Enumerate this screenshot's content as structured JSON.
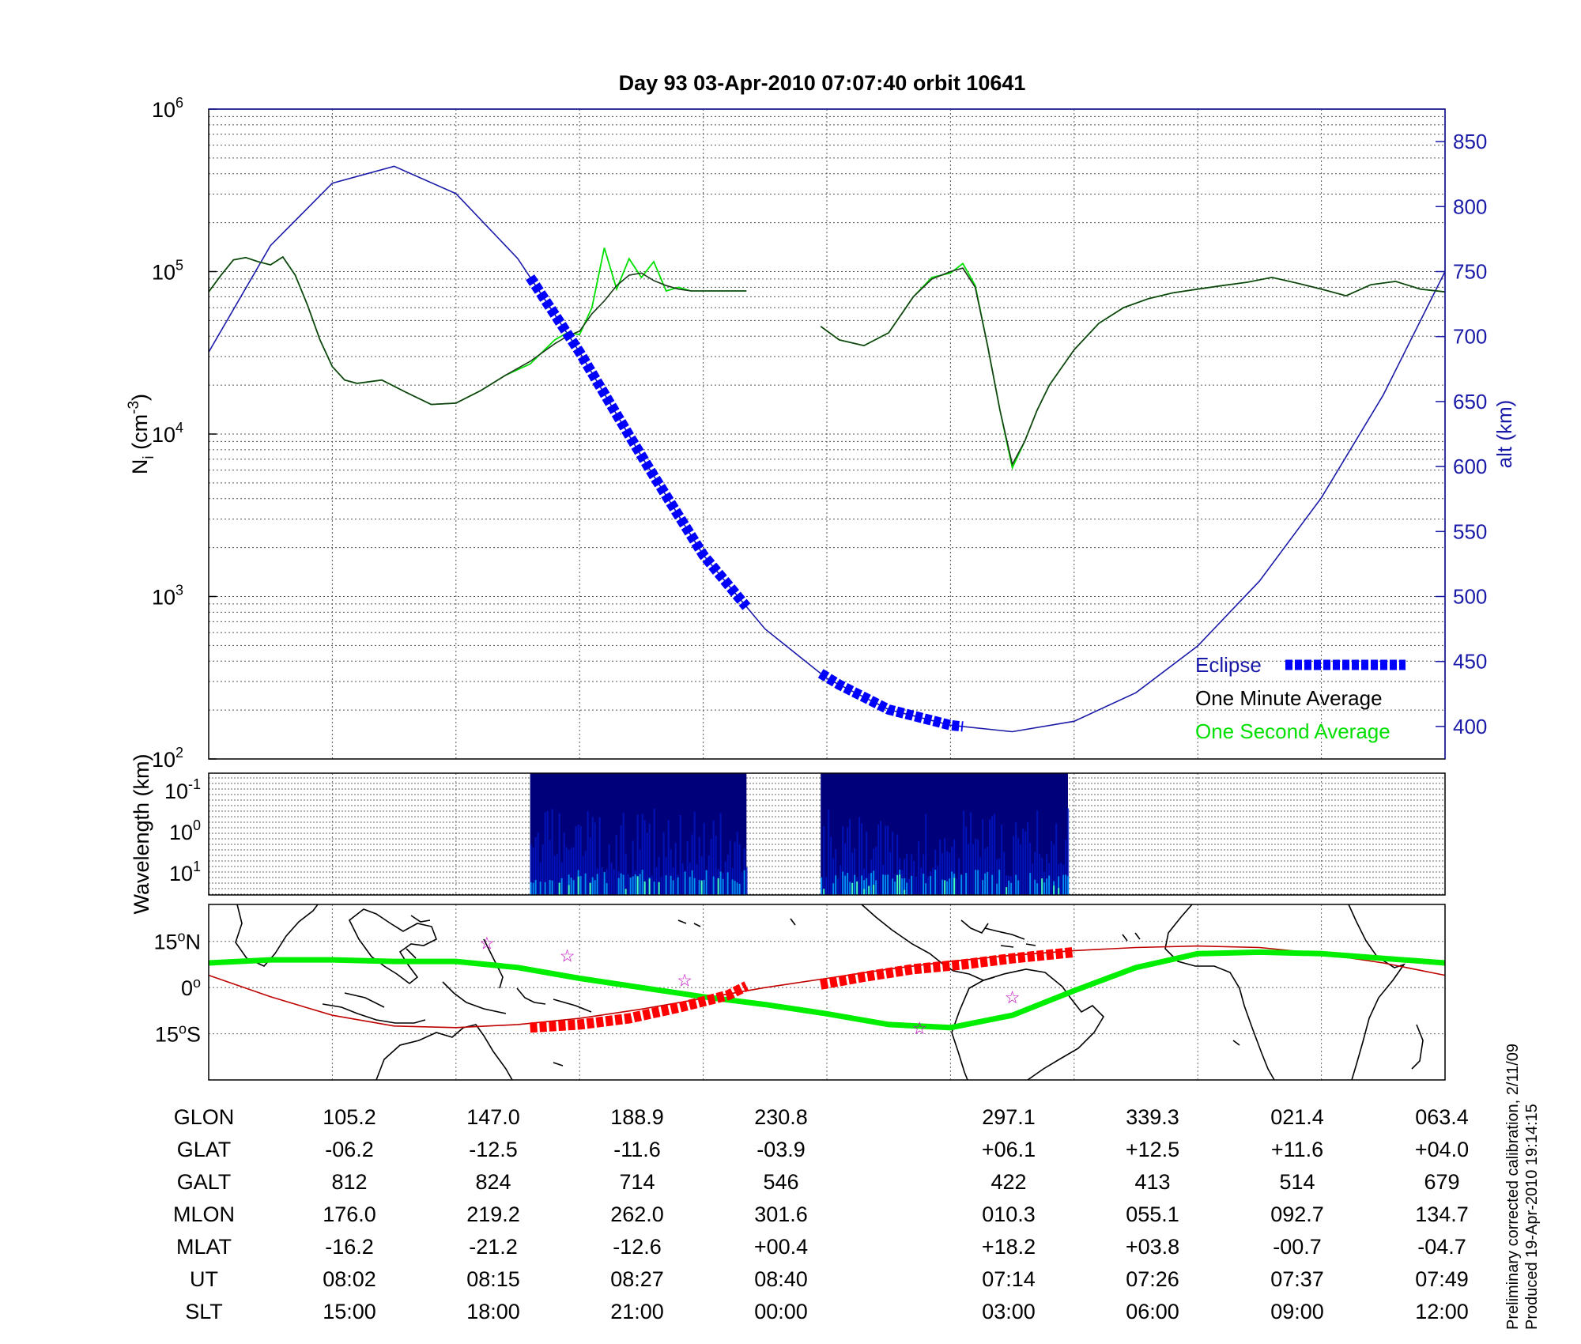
{
  "title": "Day 93  03-Apr-2010 07:07:40   orbit 10641",
  "colors": {
    "alt": "#1a1aa8",
    "eclipse": "#0000ff",
    "minute": "#1a3a1a",
    "second": "#00e000",
    "track": "#00ee00",
    "path": "#c00000",
    "red_marker": "#ff0000",
    "star": "#c000c0"
  },
  "icons": [
    "star-icon"
  ],
  "chart_data": [
    {
      "type": "line",
      "name": "density-altitude",
      "ylabel": "N_i (cm^-3)",
      "ylabel_main": "N",
      "ylabel_sub": "i",
      "ylabel_units": "(cm",
      "ylabel_exp": "-3",
      "ylabel_close": ")",
      "yscale": "log",
      "ylim": [
        100,
        1000000
      ],
      "yticks": [
        {
          "base": "10",
          "exp": "2"
        },
        {
          "base": "10",
          "exp": "3"
        },
        {
          "base": "10",
          "exp": "4"
        },
        {
          "base": "10",
          "exp": "5"
        },
        {
          "base": "10",
          "exp": "6"
        }
      ],
      "y2label": "alt (km)",
      "y2lim": [
        375,
        875
      ],
      "y2ticks": [
        "400",
        "450",
        "500",
        "550",
        "600",
        "650",
        "700",
        "750",
        "800",
        "850"
      ],
      "grid": true,
      "legend": "bottom-right",
      "legend_entries": [
        "Eclipse",
        "One Minute Average",
        "One Second Average"
      ],
      "segments": [
        {
          "x": [
            0,
            0.1,
            0.2,
            0.3,
            0.4,
            0.5,
            0.6,
            0.7,
            0.8,
            0.9,
            1.0,
            1.1,
            1.2,
            1.4,
            1.6,
            1.8,
            2.0,
            2.2,
            2.4,
            2.6,
            2.8,
            2.9,
            3.0,
            3.1,
            3.2,
            3.3,
            3.4,
            3.5,
            3.6,
            3.7,
            3.8,
            3.9,
            4.0,
            4.1,
            4.2,
            4.3,
            4.35
          ],
          "minute": [
            75000,
            95000,
            118000,
            122000,
            115000,
            110000,
            123000,
            95000,
            62000,
            38000,
            26000,
            21500,
            20500,
            21500,
            18000,
            15200,
            15500,
            18500,
            23000,
            28000,
            36000,
            40000,
            43000,
            55000,
            66000,
            82000,
            95000,
            98000,
            88000,
            82000,
            78000,
            76000,
            76000,
            76000,
            76000,
            76000,
            76000
          ],
          "second": [
            75000,
            95000,
            118000,
            122000,
            115000,
            110000,
            123000,
            95000,
            62000,
            38000,
            26000,
            21500,
            20500,
            21500,
            18000,
            15200,
            15500,
            18500,
            23000,
            27000,
            38000,
            42000,
            41000,
            60000,
            140000,
            78000,
            120000,
            92000,
            115000,
            76000,
            80000,
            76000,
            76000,
            76000,
            76000,
            76000,
            76000
          ]
        },
        {
          "x": [
            4.95,
            5.1,
            5.3,
            5.5,
            5.7,
            5.85,
            6.0,
            6.1,
            6.2,
            6.3,
            6.4,
            6.5,
            6.6,
            6.7,
            6.8,
            7.0,
            7.2,
            7.4,
            7.6,
            7.8,
            8.0,
            8.2,
            8.4,
            8.6,
            8.8,
            9.0,
            9.2,
            9.4,
            9.6,
            9.8,
            10.0
          ],
          "minute": [
            46000,
            38000,
            35000,
            42000,
            70000,
            90000,
            100000,
            105000,
            80000,
            35000,
            14000,
            6500,
            9000,
            14000,
            20000,
            33000,
            48000,
            60000,
            68000,
            74000,
            78000,
            82000,
            86000,
            92000,
            85000,
            78000,
            71000,
            83000,
            87000,
            78000,
            75000
          ],
          "second": [
            46000,
            38000,
            35000,
            42000,
            70000,
            92000,
            98000,
            112000,
            82000,
            35000,
            14000,
            6200,
            9000,
            14000,
            20000,
            33000,
            48000,
            60000,
            68000,
            74000,
            78000,
            82000,
            86000,
            92000,
            85000,
            78000,
            71000,
            83000,
            87000,
            78000,
            75000
          ]
        }
      ],
      "altitude": {
        "x": [
          0,
          0.5,
          1.0,
          1.5,
          2.0,
          2.5,
          3.0,
          3.5,
          4.0,
          4.5,
          5.0,
          5.5,
          6.0,
          6.5,
          7.0,
          7.5,
          8.0,
          8.5,
          9.0,
          9.5,
          10.0
        ],
        "km": [
          688,
          770,
          818,
          831,
          810,
          760,
          688,
          608,
          532,
          475,
          437,
          413,
          401,
          396,
          404,
          426,
          462,
          512,
          576,
          655,
          750
        ]
      },
      "eclipse_segments": [
        {
          "x": [
            2.6,
            2.8,
            3.0,
            3.2,
            3.4,
            3.6,
            3.8,
            4.0,
            4.2,
            4.35
          ]
        },
        {
          "x": [
            4.95,
            5.1,
            5.3,
            5.5,
            5.7,
            5.85,
            6.0,
            6.1
          ]
        }
      ]
    },
    {
      "type": "heatmap",
      "name": "wavelength-spectrogram",
      "ylabel": "Wavelength (km)",
      "yscale": "log",
      "yticks": [
        {
          "base": "10",
          "exp": "-1"
        },
        {
          "base": "10",
          "exp": "0"
        },
        {
          "base": "10",
          "exp": "1"
        }
      ],
      "xranges": [
        [
          2.6,
          4.35
        ],
        [
          4.95,
          6.95
        ]
      ],
      "colormap": [
        "#00007a",
        "#0018c8",
        "#0050ff",
        "#00a0ff",
        "#40ffc0",
        "#e0ff40",
        "#ff8000"
      ]
    },
    {
      "type": "scatter",
      "name": "ground-track-map",
      "ylim": [
        -30,
        27
      ],
      "yticks": [
        {
          "value": 15,
          "deg": "15",
          "hemi": "N"
        },
        {
          "value": 0,
          "deg": "0",
          "hemi": ""
        },
        {
          "value": -15,
          "deg": "15",
          "hemi": "S"
        }
      ],
      "green_track": {
        "x": [
          0,
          0.5,
          1.0,
          1.5,
          2.0,
          2.5,
          3.0,
          3.5,
          4.0,
          4.5,
          5.0,
          5.5,
          6.0,
          6.5,
          7.0,
          7.5,
          8.0,
          8.5,
          9.0,
          9.5,
          10.0
        ],
        "lat": [
          8,
          9,
          9,
          8.5,
          8.5,
          6.5,
          3,
          0,
          -3,
          -5.5,
          -8.5,
          -12,
          -13,
          -9,
          -1,
          6.5,
          11,
          11.5,
          11,
          9.5,
          8
        ]
      },
      "red_path": {
        "x": [
          0,
          0.5,
          1.0,
          1.5,
          2.0,
          2.5,
          3.0,
          3.5,
          4.0,
          4.5,
          5.0,
          5.5,
          6.0,
          6.5,
          7.0,
          7.5,
          8.0,
          8.5,
          9.0,
          9.5,
          10.0
        ],
        "lat": [
          4,
          -3,
          -9,
          -12.5,
          -13,
          -12,
          -10,
          -7,
          -3.5,
          0,
          3,
          6,
          8.5,
          10.5,
          12,
          13,
          13.5,
          13,
          11,
          8,
          4
        ]
      },
      "red_markers": [
        {
          "x": [
            2.6,
            3.0,
            3.4,
            3.8,
            4.2,
            4.35
          ],
          "lat": [
            -13,
            -12,
            -10,
            -6.5,
            -2.5,
            0.5
          ]
        },
        {
          "x": [
            4.95,
            5.3,
            5.7,
            6.1,
            6.5,
            7.0
          ],
          "lat": [
            1,
            3.5,
            6,
            7.5,
            9.5,
            11.5
          ]
        }
      ],
      "stars": [
        {
          "x": 2.25,
          "lat": 14.5
        },
        {
          "x": 2.9,
          "lat": 10.5
        },
        {
          "x": 3.85,
          "lat": 2.5
        },
        {
          "x": 6.5,
          "lat": -3
        },
        {
          "x": 5.75,
          "lat": -13
        }
      ]
    }
  ],
  "coords_table": {
    "row_labels": [
      "GLON",
      "GLAT",
      "GALT",
      "MLON",
      "MLAT",
      "UT",
      "SLT"
    ],
    "columns": [
      {
        "values": [
          "105.2",
          "-06.2",
          "812",
          "176.0",
          "-16.2",
          "08:02",
          "15:00"
        ]
      },
      {
        "values": [
          "147.0",
          "-12.5",
          "824",
          "219.2",
          "-21.2",
          "08:15",
          "18:00"
        ]
      },
      {
        "values": [
          "188.9",
          "-11.6",
          "714",
          "262.0",
          "-12.6",
          "08:27",
          "21:00"
        ]
      },
      {
        "values": [
          "230.8",
          "-03.9",
          "546",
          "301.6",
          "+00.4",
          "08:40",
          "00:00"
        ]
      },
      {
        "values": [
          "297.1",
          "+06.1",
          "422",
          "010.3",
          "+18.2",
          "07:14",
          "03:00"
        ]
      },
      {
        "values": [
          "339.3",
          "+12.5",
          "413",
          "055.1",
          "+03.8",
          "07:26",
          "06:00"
        ]
      },
      {
        "values": [
          "021.4",
          "+11.6",
          "514",
          "092.7",
          "-00.7",
          "07:37",
          "09:00"
        ]
      },
      {
        "values": [
          "063.4",
          "+04.0",
          "679",
          "134.7",
          "-04.7",
          "07:49",
          "12:00"
        ]
      }
    ]
  },
  "footer": {
    "line1": "Preliminary corrected calibration, 2/11/09",
    "line2": "Produced 19-Apr-2010 19:14:15"
  }
}
